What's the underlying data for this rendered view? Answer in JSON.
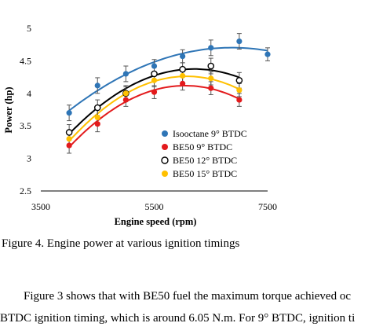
{
  "chart_data": {
    "type": "scatter",
    "xlabel": "Engine speed (rpm)",
    "ylabel": "Power (hp)",
    "xlim": [
      3500,
      7500
    ],
    "ylim": [
      2.5,
      5
    ],
    "x_ticks": [
      "3500",
      "5500",
      "7500"
    ],
    "y_ticks": [
      "2.5",
      "3",
      "3.5",
      "4",
      "4.5",
      "5"
    ],
    "grid": false,
    "legend_position": "bottom-right",
    "series": [
      {
        "name": "Isooctane 9° BTDC",
        "color": "#2e75b6",
        "marker": "filled",
        "x": [
          4000,
          4500,
          5000,
          5500,
          6000,
          6500,
          7000,
          7500
        ],
        "y": [
          3.7,
          4.12,
          4.3,
          4.42,
          4.57,
          4.7,
          4.8,
          4.6
        ],
        "err": [
          0.12,
          0.12,
          0.12,
          0.1,
          0.1,
          0.12,
          0.12,
          0.1
        ]
      },
      {
        "name": "BE50 9° BTDC",
        "color": "#e31a1c",
        "marker": "filled",
        "x": [
          4000,
          4500,
          5000,
          5500,
          6000,
          6500,
          7000
        ],
        "y": [
          3.2,
          3.53,
          3.9,
          4.02,
          4.15,
          4.08,
          3.9
        ],
        "err": [
          0.12,
          0.12,
          0.1,
          0.1,
          0.1,
          0.1,
          0.1
        ]
      },
      {
        "name": "BE50 12° BTDC",
        "color": "#000000",
        "marker": "open",
        "x": [
          4000,
          4500,
          5000,
          5500,
          6000,
          6500,
          7000
        ],
        "y": [
          3.4,
          3.78,
          4.0,
          4.3,
          4.37,
          4.42,
          4.2
        ],
        "err": [
          0.12,
          0.12,
          0.12,
          0.1,
          0.1,
          0.12,
          0.12
        ]
      },
      {
        "name": "BE50 15° BTDC",
        "color": "#ffc000",
        "marker": "filled",
        "x": [
          4000,
          4500,
          5000,
          5500,
          6000,
          6500,
          7000
        ],
        "y": [
          3.3,
          3.63,
          4.0,
          4.2,
          4.27,
          4.23,
          4.05
        ],
        "err": [
          0.12,
          0.12,
          0.1,
          0.1,
          0.1,
          0.1,
          0.1
        ]
      }
    ]
  },
  "axis_labels": {
    "x": "Engine speed (rpm)",
    "y": "Power (hp)"
  },
  "caption": "Figure 4. Engine power at various ignition timings",
  "body_text": {
    "line1": "Figure 3 shows that with BE50 fuel the maximum torque achieved oc",
    "line2": "BTDC ignition timing, which is around 6.05 N.m. For 9° BTDC, ignition ti"
  }
}
